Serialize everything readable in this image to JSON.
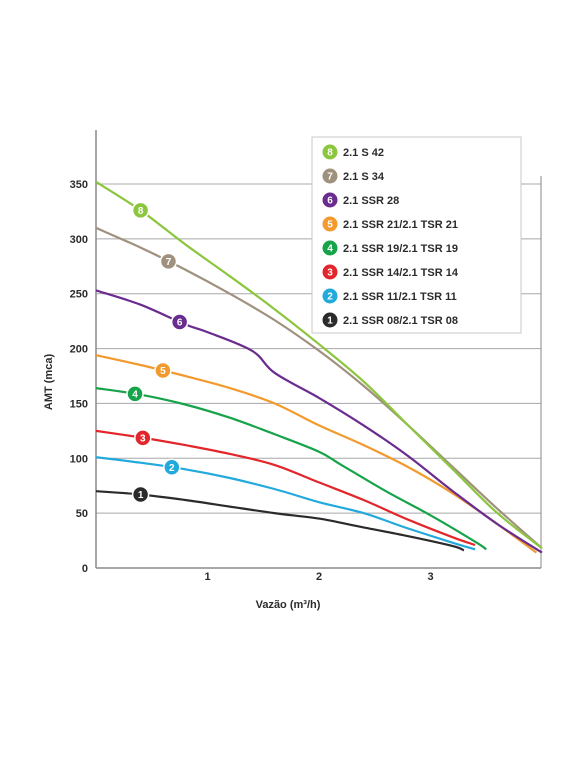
{
  "chart_data": {
    "type": "line",
    "xlabel": "Vazão (m³/h)",
    "ylabel": "AMT (mca)",
    "xlim": [
      0,
      4
    ],
    "ylim": [
      0,
      400
    ],
    "xticks": [
      1,
      2,
      3
    ],
    "yticks": [
      0,
      50,
      100,
      150,
      200,
      250,
      300,
      350
    ],
    "grid": "horizontal",
    "legend_position": "top-right",
    "series": [
      {
        "badge": "8",
        "name": "2.1 S 42",
        "color": "#8cc63f",
        "x": [
          0,
          0.4,
          0.8,
          1.2,
          1.6,
          2.0,
          2.4,
          2.8,
          3.2,
          3.6,
          4.0
        ],
        "y": [
          352,
          326,
          295,
          266,
          236,
          204,
          170,
          130,
          90,
          50,
          18
        ],
        "badge_x": 0.4
      },
      {
        "badge": "7",
        "name": "2.1 S 34",
        "color": "#a0907e",
        "x": [
          0,
          0.4,
          0.8,
          1.2,
          1.6,
          2.0,
          2.4,
          2.8,
          3.2,
          3.6,
          4.0
        ],
        "y": [
          310,
          292,
          272,
          250,
          226,
          198,
          166,
          130,
          92,
          54,
          18
        ],
        "badge_x": 0.65
      },
      {
        "badge": "6",
        "name": "2.1 SSR 28",
        "color": "#6a2c8e",
        "x": [
          0,
          0.4,
          0.8,
          1.0,
          1.4,
          1.6,
          2.0,
          2.4,
          2.8,
          3.2,
          3.6,
          4.0
        ],
        "y": [
          253,
          240,
          222,
          215,
          198,
          178,
          155,
          130,
          102,
          70,
          40,
          14
        ],
        "badge_x": 0.75
      },
      {
        "badge": "5",
        "name": "2.1 SSR 21/2.1 TSR 21",
        "color": "#f39a2e",
        "x": [
          0,
          0.4,
          0.8,
          1.2,
          1.6,
          2.0,
          2.4,
          2.8,
          3.2,
          3.6,
          3.95
        ],
        "y": [
          194,
          185,
          175,
          164,
          150,
          130,
          112,
          92,
          68,
          40,
          14
        ],
        "badge_x": 0.6
      },
      {
        "badge": "4",
        "name": "2.1 SSR 19/2.1 TSR 19",
        "color": "#17a34a",
        "x": [
          0,
          0.4,
          0.8,
          1.2,
          1.6,
          2.0,
          2.2,
          2.6,
          3.0,
          3.4,
          3.5
        ],
        "y": [
          164,
          158,
          149,
          137,
          122,
          106,
          94,
          70,
          48,
          24,
          17
        ],
        "badge_x": 0.35
      },
      {
        "badge": "3",
        "name": "2.1 SSR 14/2.1 TSR 14",
        "color": "#e2262b",
        "x": [
          0,
          0.4,
          0.8,
          1.2,
          1.6,
          2.0,
          2.4,
          2.8,
          3.2,
          3.4
        ],
        "y": [
          125,
          119,
          112,
          104,
          94,
          78,
          62,
          44,
          28,
          21
        ],
        "badge_x": 0.42
      },
      {
        "badge": "2",
        "name": "2.1 SSR 11/2.1 TSR 11",
        "color": "#22aadd",
        "x": [
          0,
          0.4,
          0.8,
          1.2,
          1.6,
          2.0,
          2.4,
          2.8,
          3.2,
          3.4
        ],
        "y": [
          101,
          96,
          90,
          82,
          72,
          60,
          50,
          36,
          23,
          17
        ],
        "badge_x": 0.68
      },
      {
        "badge": "1",
        "name": "2.1 SSR 08/2.1 TSR 08",
        "color": "#2b2b2b",
        "x": [
          0,
          0.4,
          0.8,
          1.2,
          1.6,
          2.0,
          2.4,
          2.8,
          3.2,
          3.3
        ],
        "y": [
          70,
          67,
          62,
          56,
          50,
          45,
          37,
          29,
          20,
          16
        ],
        "badge_x": 0.4
      }
    ],
    "legend_order": [
      "8",
      "7",
      "6",
      "5",
      "4",
      "3",
      "2",
      "1"
    ]
  }
}
